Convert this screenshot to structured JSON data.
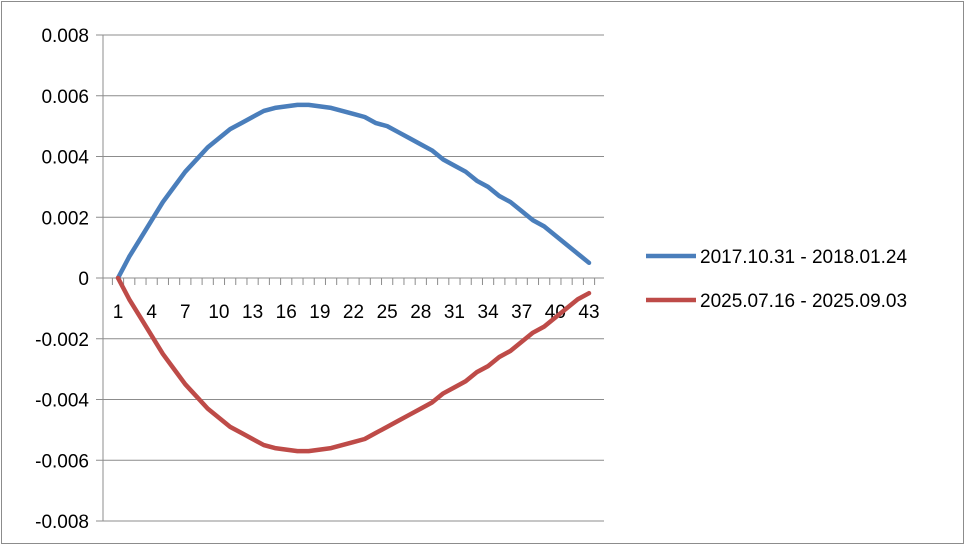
{
  "chart_data": {
    "type": "line",
    "title": "",
    "xlabel": "",
    "ylabel": "",
    "x": [
      1,
      2,
      3,
      4,
      5,
      6,
      7,
      8,
      9,
      10,
      11,
      12,
      13,
      14,
      15,
      16,
      17,
      18,
      19,
      20,
      21,
      22,
      23,
      24,
      25,
      26,
      27,
      28,
      29,
      30,
      31,
      32,
      33,
      34,
      35,
      36,
      37,
      38,
      39,
      40,
      41,
      42,
      43
    ],
    "x_tick_labels": [
      "1",
      "4",
      "7",
      "10",
      "13",
      "16",
      "19",
      "22",
      "25",
      "28",
      "31",
      "34",
      "37",
      "40",
      "43"
    ],
    "y_tick_labels": [
      "0.008",
      "0.006",
      "0.004",
      "0.002",
      "0",
      "-0.002",
      "-0.004",
      "-0.006",
      "-0.008"
    ],
    "ylim": [
      -0.008,
      0.008
    ],
    "grid": true,
    "legend_position": "right",
    "series": [
      {
        "name": "2017.10.31 - 2018.01.24",
        "color": "#4a7ebb",
        "values": [
          0,
          0.0007,
          0.0013,
          0.0019,
          0.0025,
          0.003,
          0.0035,
          0.0039,
          0.0043,
          0.0046,
          0.0049,
          0.0051,
          0.0053,
          0.0055,
          0.0056,
          0.00565,
          0.0057,
          0.0057,
          0.00565,
          0.0056,
          0.0055,
          0.0054,
          0.0053,
          0.0051,
          0.005,
          0.0048,
          0.0046,
          0.0044,
          0.0042,
          0.0039,
          0.0037,
          0.0035,
          0.0032,
          0.003,
          0.0027,
          0.0025,
          0.0022,
          0.0019,
          0.0017,
          0.0014,
          0.0011,
          0.0008,
          0.0005
        ]
      },
      {
        "name": "2025.07.16 - 2025.09.03",
        "color": "#be4b48",
        "values": [
          0,
          -0.0007,
          -0.0013,
          -0.0019,
          -0.0025,
          -0.003,
          -0.0035,
          -0.0039,
          -0.0043,
          -0.0046,
          -0.0049,
          -0.0051,
          -0.0053,
          -0.0055,
          -0.0056,
          -0.00565,
          -0.0057,
          -0.0057,
          -0.00565,
          -0.0056,
          -0.0055,
          -0.0054,
          -0.0053,
          -0.0051,
          -0.0049,
          -0.0047,
          -0.0045,
          -0.0043,
          -0.0041,
          -0.0038,
          -0.0036,
          -0.0034,
          -0.0031,
          -0.0029,
          -0.0026,
          -0.0024,
          -0.0021,
          -0.0018,
          -0.0016,
          -0.0013,
          -0.001,
          -0.0007,
          -0.0005
        ]
      }
    ]
  }
}
